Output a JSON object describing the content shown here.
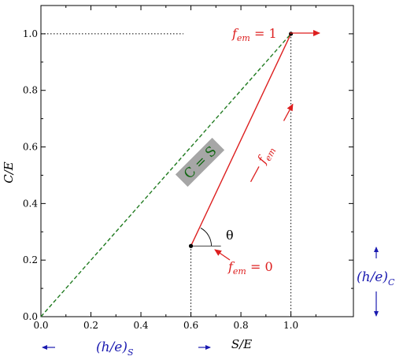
{
  "chart_data": {
    "type": "line",
    "title": "",
    "xlabel": "S/E",
    "ylabel": "C/E",
    "xlim": [
      0,
      1.25
    ],
    "ylim": [
      0,
      1.1
    ],
    "x_ticks": [
      "0.0",
      "0.2",
      "0.4",
      "0.6",
      "0.8",
      "1.0"
    ],
    "y_ticks": [
      "0.0",
      "0.2",
      "0.4",
      "0.6",
      "0.8",
      "1.0"
    ],
    "grid": false,
    "series": [
      {
        "name": "C = S",
        "style": "dashed",
        "color": "#1f7a1f",
        "points": [
          [
            0,
            0
          ],
          [
            1.0,
            1.0
          ]
        ]
      },
      {
        "name": "f_em",
        "style": "solid",
        "color": "#dd1f1f",
        "points": [
          [
            0.6,
            0.25
          ],
          [
            1.0,
            1.0
          ]
        ]
      }
    ],
    "markers": [
      [
        0.6,
        0.25
      ],
      [
        1.0,
        1.0
      ]
    ],
    "annotations": {
      "diag_label": "C = S",
      "fem_one_main": "f",
      "fem_one_sub": "em",
      "fem_one_rest": " = 1",
      "fem_zero_main": "f",
      "fem_zero_sub": "em",
      "fem_zero_rest": " = 0",
      "fem_line_main": "f",
      "fem_line_sub": "em",
      "theta": "θ",
      "hes_main": "(h/e)",
      "hes_sub": "S",
      "hec_main": "(h/e)",
      "hec_sub": "C"
    },
    "colors": {
      "red": "#dd1f1f",
      "green": "#1f7a1f",
      "blue": "#1a1ab0",
      "label_box": "#a6a6a6"
    }
  }
}
